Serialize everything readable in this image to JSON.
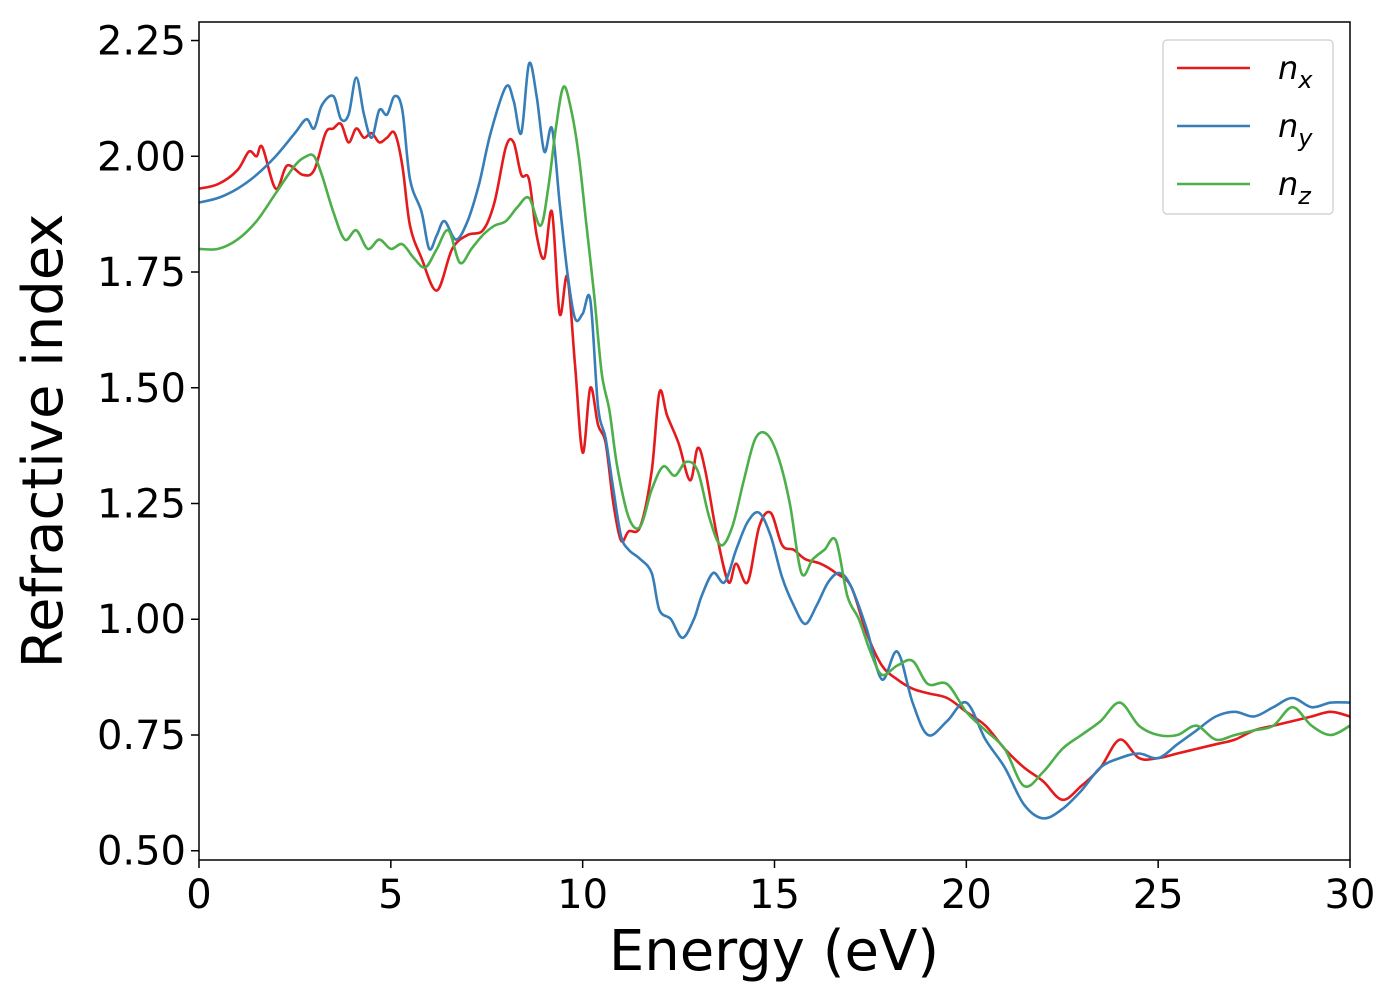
{
  "chart_data": {
    "type": "line",
    "title": "",
    "xlabel": "Energy (eV)",
    "ylabel": "Refractive index",
    "xlim": [
      0,
      30
    ],
    "ylim": [
      0.48,
      2.29
    ],
    "xticks": [
      0,
      5,
      10,
      15,
      20,
      25,
      30
    ],
    "xtick_labels": [
      "0",
      "5",
      "10",
      "15",
      "20",
      "25",
      "30"
    ],
    "yticks": [
      0.5,
      0.75,
      1.0,
      1.25,
      1.5,
      1.75,
      2.0,
      2.25
    ],
    "ytick_labels": [
      "0.50",
      "0.75",
      "1.00",
      "1.25",
      "1.50",
      "1.75",
      "2.00",
      "2.25"
    ],
    "grid": false,
    "legend_position": "top-right",
    "series": [
      {
        "name": "n",
        "subscript": "x",
        "color": "#e41a1c",
        "x": [
          0,
          0.5,
          1,
          1.3,
          1.5,
          1.65,
          2,
          2.3,
          2.7,
          3,
          3.3,
          3.5,
          3.7,
          3.9,
          4.1,
          4.3,
          4.5,
          4.7,
          4.9,
          5.1,
          5.3,
          5.5,
          5.8,
          6.2,
          6.6,
          7,
          7.4,
          7.7,
          8,
          8.2,
          8.4,
          8.6,
          8.8,
          9,
          9.2,
          9.4,
          9.6,
          9.8,
          10,
          10.2,
          10.4,
          10.6,
          10.8,
          11,
          11.2,
          11.5,
          11.8,
          12,
          12.2,
          12.5,
          12.8,
          13,
          13.2,
          13.5,
          13.8,
          14,
          14.3,
          14.6,
          14.9,
          15.2,
          15.5,
          15.8,
          16.2,
          16.6,
          17,
          17.4,
          17.8,
          18.2,
          18.6,
          19,
          19.5,
          20,
          20.5,
          21,
          21.5,
          22,
          22.5,
          23,
          23.5,
          24,
          24.5,
          25,
          25.5,
          26,
          26.5,
          27,
          27.5,
          28,
          28.5,
          29,
          29.5,
          30
        ],
        "y": [
          1.93,
          1.94,
          1.97,
          2.01,
          2.0,
          2.02,
          1.93,
          1.98,
          1.96,
          1.97,
          2.05,
          2.06,
          2.07,
          2.03,
          2.06,
          2.04,
          2.05,
          2.03,
          2.04,
          2.05,
          1.98,
          1.85,
          1.78,
          1.71,
          1.8,
          1.83,
          1.84,
          1.9,
          2.02,
          2.03,
          1.96,
          1.95,
          1.83,
          1.78,
          1.88,
          1.66,
          1.74,
          1.55,
          1.36,
          1.5,
          1.42,
          1.38,
          1.25,
          1.17,
          1.19,
          1.2,
          1.32,
          1.49,
          1.44,
          1.38,
          1.3,
          1.37,
          1.32,
          1.18,
          1.08,
          1.12,
          1.08,
          1.2,
          1.23,
          1.16,
          1.15,
          1.13,
          1.12,
          1.1,
          1.07,
          0.97,
          0.9,
          0.87,
          0.85,
          0.84,
          0.83,
          0.8,
          0.77,
          0.72,
          0.68,
          0.65,
          0.61,
          0.64,
          0.68,
          0.74,
          0.7,
          0.7,
          0.71,
          0.72,
          0.73,
          0.74,
          0.76,
          0.77,
          0.78,
          0.79,
          0.8,
          0.79
        ]
      },
      {
        "name": "n",
        "subscript": "y",
        "color": "#377eb8",
        "x": [
          0,
          0.5,
          1,
          1.5,
          2,
          2.5,
          2.8,
          3,
          3.2,
          3.5,
          3.7,
          3.9,
          4.1,
          4.3,
          4.5,
          4.7,
          4.9,
          5.1,
          5.3,
          5.5,
          5.8,
          6,
          6.2,
          6.4,
          6.7,
          7,
          7.3,
          7.6,
          8,
          8.2,
          8.4,
          8.6,
          8.8,
          9,
          9.2,
          9.4,
          9.6,
          9.8,
          10,
          10.2,
          10.4,
          10.6,
          10.8,
          11,
          11.2,
          11.5,
          11.8,
          12,
          12.3,
          12.6,
          12.9,
          13.1,
          13.4,
          13.7,
          14,
          14.3,
          14.6,
          14.9,
          15.2,
          15.5,
          15.8,
          16.1,
          16.4,
          16.7,
          17,
          17.4,
          17.8,
          18.2,
          18.6,
          19,
          19.5,
          20,
          20.5,
          21,
          21.5,
          22,
          22.5,
          23,
          23.5,
          24,
          24.5,
          25,
          25.5,
          26,
          26.5,
          27,
          27.5,
          28,
          28.5,
          29,
          29.5,
          30
        ],
        "y": [
          1.9,
          1.91,
          1.93,
          1.96,
          2.0,
          2.05,
          2.08,
          2.06,
          2.11,
          2.13,
          2.08,
          2.09,
          2.17,
          2.09,
          2.04,
          2.1,
          2.09,
          2.13,
          2.1,
          1.95,
          1.88,
          1.8,
          1.83,
          1.86,
          1.82,
          1.86,
          1.94,
          2.05,
          2.15,
          2.12,
          2.05,
          2.2,
          2.13,
          2.01,
          2.06,
          1.9,
          1.75,
          1.65,
          1.66,
          1.69,
          1.46,
          1.39,
          1.28,
          1.18,
          1.15,
          1.13,
          1.1,
          1.02,
          1.0,
          0.96,
          1.0,
          1.05,
          1.1,
          1.08,
          1.15,
          1.21,
          1.23,
          1.18,
          1.09,
          1.03,
          0.99,
          1.03,
          1.08,
          1.1,
          1.07,
          0.98,
          0.87,
          0.93,
          0.82,
          0.75,
          0.78,
          0.82,
          0.74,
          0.68,
          0.6,
          0.57,
          0.59,
          0.63,
          0.68,
          0.7,
          0.71,
          0.7,
          0.73,
          0.76,
          0.79,
          0.8,
          0.79,
          0.81,
          0.83,
          0.81,
          0.82,
          0.82
        ]
      },
      {
        "name": "n",
        "subscript": "z",
        "color": "#4daf4a",
        "x": [
          0,
          0.5,
          1,
          1.5,
          2,
          2.5,
          2.8,
          3,
          3.2,
          3.5,
          3.8,
          4.1,
          4.4,
          4.7,
          5,
          5.3,
          5.6,
          5.9,
          6.2,
          6.5,
          6.8,
          7.1,
          7.4,
          7.7,
          8,
          8.3,
          8.6,
          8.9,
          9.1,
          9.3,
          9.5,
          9.7,
          9.9,
          10.1,
          10.3,
          10.5,
          10.7,
          10.9,
          11.2,
          11.5,
          11.8,
          12.1,
          12.4,
          12.7,
          13,
          13.3,
          13.6,
          13.9,
          14.2,
          14.5,
          14.8,
          15.1,
          15.4,
          15.7,
          16,
          16.3,
          16.6,
          16.9,
          17.2,
          17.5,
          17.8,
          18.2,
          18.6,
          19,
          19.5,
          20,
          20.5,
          21,
          21.5,
          22,
          22.5,
          23,
          23.5,
          24,
          24.5,
          25,
          25.5,
          26,
          26.5,
          27,
          27.5,
          28,
          28.5,
          29,
          29.5,
          30
        ],
        "y": [
          1.8,
          1.8,
          1.82,
          1.86,
          1.92,
          1.98,
          2.0,
          2.0,
          1.96,
          1.88,
          1.82,
          1.84,
          1.8,
          1.82,
          1.8,
          1.81,
          1.78,
          1.76,
          1.8,
          1.84,
          1.77,
          1.8,
          1.83,
          1.85,
          1.86,
          1.89,
          1.91,
          1.85,
          1.93,
          2.06,
          2.15,
          2.1,
          2.0,
          1.85,
          1.7,
          1.53,
          1.45,
          1.33,
          1.22,
          1.2,
          1.28,
          1.33,
          1.31,
          1.34,
          1.32,
          1.22,
          1.16,
          1.2,
          1.3,
          1.39,
          1.4,
          1.35,
          1.25,
          1.1,
          1.13,
          1.15,
          1.17,
          1.05,
          1.0,
          0.93,
          0.88,
          0.9,
          0.91,
          0.86,
          0.86,
          0.8,
          0.76,
          0.72,
          0.64,
          0.67,
          0.72,
          0.75,
          0.78,
          0.82,
          0.77,
          0.75,
          0.75,
          0.77,
          0.74,
          0.75,
          0.76,
          0.77,
          0.81,
          0.77,
          0.75,
          0.77
        ]
      }
    ]
  }
}
